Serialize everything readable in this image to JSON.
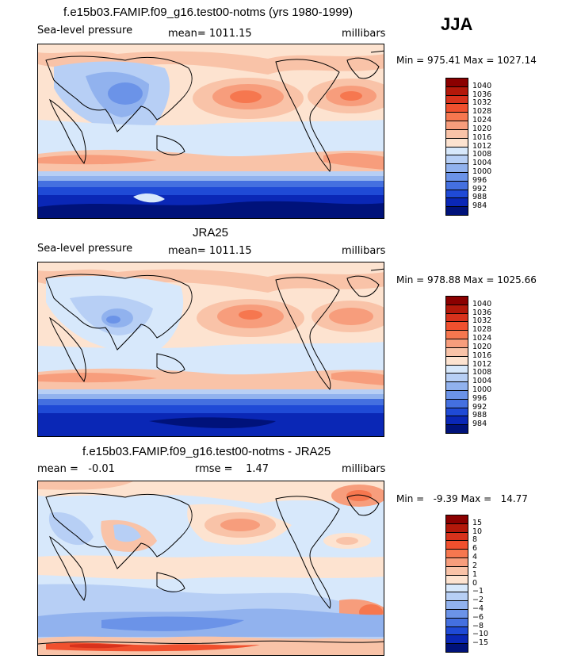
{
  "season": "JJA",
  "panels": [
    {
      "title": "f.e15b03.FAMIP.f09_g16.test00-notms (yrs 1980-1999)",
      "left_label": "Sea-level pressure",
      "center_label": "mean= 1011.15",
      "right_label": "millibars",
      "minmax": "Min = 975.41 Max = 1027.14",
      "colorbar": {
        "labels": [
          "1040",
          "1036",
          "1032",
          "1028",
          "1024",
          "1020",
          "1016",
          "1012",
          "1008",
          "1004",
          "1000",
          "996",
          "992",
          "988",
          "984"
        ],
        "colors": [
          "#8b0000",
          "#b3180a",
          "#d8321c",
          "#f0502e",
          "#f6774f",
          "#f79d7c",
          "#f9c3a8",
          "#fde3d0",
          "#d7e8fb",
          "#b7cff5",
          "#91b2ee",
          "#6b93e8",
          "#4470e0",
          "#1f4ad6",
          "#0a27b6",
          "#00127a"
        ]
      }
    },
    {
      "title": "JRA25",
      "left_label": "Sea-level pressure",
      "center_label": "mean= 1011.15",
      "right_label": "millibars",
      "minmax": "Min = 978.88 Max = 1025.66",
      "colorbar": {
        "labels": [
          "1040",
          "1036",
          "1032",
          "1028",
          "1024",
          "1020",
          "1016",
          "1012",
          "1008",
          "1004",
          "1000",
          "996",
          "992",
          "988",
          "984"
        ],
        "colors": [
          "#8b0000",
          "#b3180a",
          "#d8321c",
          "#f0502e",
          "#f6774f",
          "#f79d7c",
          "#f9c3a8",
          "#fde3d0",
          "#d7e8fb",
          "#b7cff5",
          "#91b2ee",
          "#6b93e8",
          "#4470e0",
          "#1f4ad6",
          "#0a27b6",
          "#00127a"
        ]
      }
    },
    {
      "title": "f.e15b03.FAMIP.f09_g16.test00-notms - JRA25",
      "left_label": "mean =   -0.01",
      "center_label": "rmse =    1.47",
      "right_label": "millibars",
      "minmax": "Min =   -9.39 Max =   14.77",
      "colorbar": {
        "labels": [
          "15",
          "10",
          "8",
          "6",
          "4",
          "2",
          "1",
          "0",
          "−1",
          "−2",
          "−4",
          "−6",
          "−8",
          "−10",
          "−15"
        ],
        "colors": [
          "#8b0000",
          "#b3180a",
          "#d8321c",
          "#f0502e",
          "#f6774f",
          "#f79d7c",
          "#f9c3a8",
          "#fde3d0",
          "#d7e8fb",
          "#b7cff5",
          "#91b2ee",
          "#6b93e8",
          "#4470e0",
          "#1f4ad6",
          "#0a27b6",
          "#00127a"
        ]
      }
    }
  ],
  "chart_data": [
    {
      "type": "heatmap",
      "title": "f.e15b03.FAMIP.f09_g16.test00-notms (yrs 1980-1999)",
      "variable": "Sea-level pressure",
      "units": "millibars",
      "mean": 1011.15,
      "min": 975.41,
      "max": 1027.14,
      "contour_levels": [
        984,
        988,
        992,
        996,
        1000,
        1004,
        1008,
        1012,
        1016,
        1020,
        1024,
        1028,
        1032,
        1036,
        1040
      ]
    },
    {
      "type": "heatmap",
      "title": "JRA25",
      "variable": "Sea-level pressure",
      "units": "millibars",
      "mean": 1011.15,
      "min": 978.88,
      "max": 1025.66,
      "contour_levels": [
        984,
        988,
        992,
        996,
        1000,
        1004,
        1008,
        1012,
        1016,
        1020,
        1024,
        1028,
        1032,
        1036,
        1040
      ]
    },
    {
      "type": "heatmap",
      "title": "f.e15b03.FAMIP.f09_g16.test00-notms - JRA25",
      "units": "millibars",
      "mean": -0.01,
      "rmse": 1.47,
      "min": -9.39,
      "max": 14.77,
      "contour_levels": [
        -15,
        -10,
        -8,
        -6,
        -4,
        -2,
        -1,
        0,
        1,
        2,
        4,
        6,
        8,
        10,
        15
      ]
    }
  ]
}
